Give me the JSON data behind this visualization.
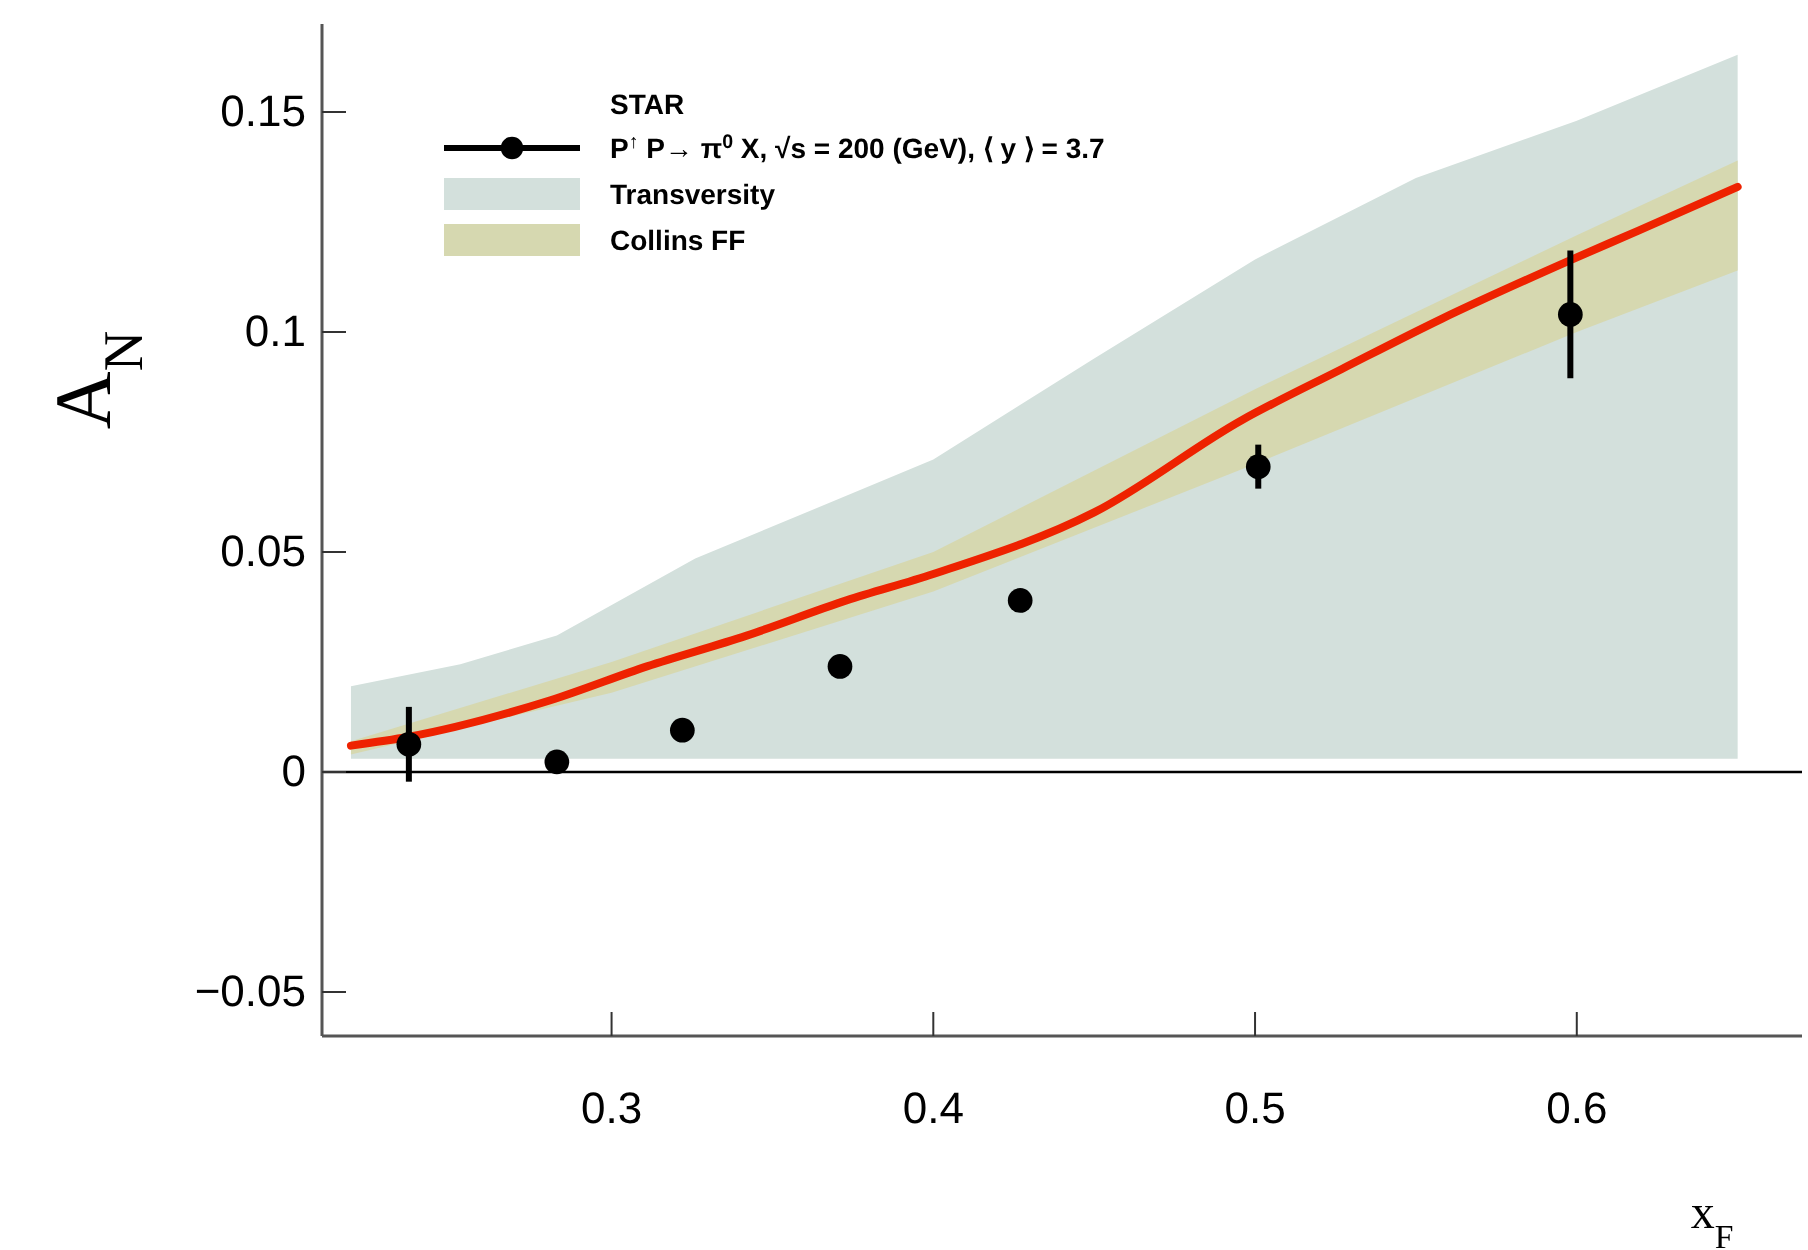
{
  "chart_data": {
    "type": "line",
    "xlabel": "x$_{F}$",
    "ylabel": "A$_{N}$",
    "legend_title": "STAR",
    "legend": "top left",
    "xlim": [
      0.21,
      0.67
    ],
    "ylim": [
      -0.06,
      0.17
    ],
    "xticks": [
      0.3,
      0.4,
      0.5,
      0.6
    ],
    "yticks": [
      {
        "value": -0.05,
        "label": "−0.05"
      },
      0,
      0.05,
      0.1,
      0.15
    ],
    "ref_lines": [
      {
        "axis": "y",
        "value": 0,
        "color": "#000000"
      }
    ],
    "series": [
      {
        "name": "Transversity",
        "type": "area",
        "color": "#d3e0dc",
        "x": [
          0.219,
          0.253,
          0.283,
          0.326,
          0.4,
          0.45,
          0.5,
          0.55,
          0.6,
          0.65
        ],
        "values": [
          null,
          null,
          null,
          null,
          null,
          null,
          null,
          null,
          null,
          null
        ],
        "upper": [
          0.0195,
          0.0245,
          0.031,
          0.0485,
          0.071,
          0.094,
          0.1165,
          0.135,
          0.148,
          0.163
        ],
        "lower": [
          0.003,
          0.003,
          0.003,
          0.003,
          0.003,
          0.003,
          0.003,
          0.003,
          0.003,
          0.003
        ]
      },
      {
        "name": "Collins FF",
        "type": "area",
        "color": "#d6d8b0",
        "x": [
          0.219,
          0.3,
          0.4,
          0.5,
          0.6,
          0.65
        ],
        "values": [
          null,
          null,
          null,
          null,
          null,
          null
        ],
        "upper": [
          0.007,
          0.025,
          0.05,
          0.087,
          0.122,
          0.139
        ],
        "lower": [
          0.004,
          0.018,
          0.041,
          0.07,
          0.1,
          0.114
        ]
      },
      {
        "color": "#ee2200",
        "x": [
          0.219,
          0.237,
          0.281,
          0.311,
          0.342,
          0.373,
          0.4,
          0.45,
          0.496,
          0.527,
          0.558,
          0.597,
          0.619,
          0.65
        ],
        "values": [
          0.006,
          0.008,
          0.0163,
          0.024,
          0.031,
          0.039,
          0.045,
          0.059,
          0.08,
          0.0916,
          0.103,
          0.116,
          0.123,
          0.133
        ]
      },
      {
        "name": "P$^{↑}$ P→ π$^{0}$ X, √s = 200 (GeV), ⟨ y ⟩ = 3.7",
        "type": "scatter",
        "marker": "circle",
        "color": "#000000",
        "x": [
          0.237,
          0.283,
          0.322,
          0.371,
          0.427,
          0.501,
          0.598
        ],
        "values": [
          0.0063,
          0.0023,
          0.0095,
          0.024,
          0.039,
          0.0694,
          0.104
        ],
        "errors": [
          0.0085,
          null,
          null,
          null,
          null,
          0.005,
          0.0145
        ]
      }
    ]
  }
}
